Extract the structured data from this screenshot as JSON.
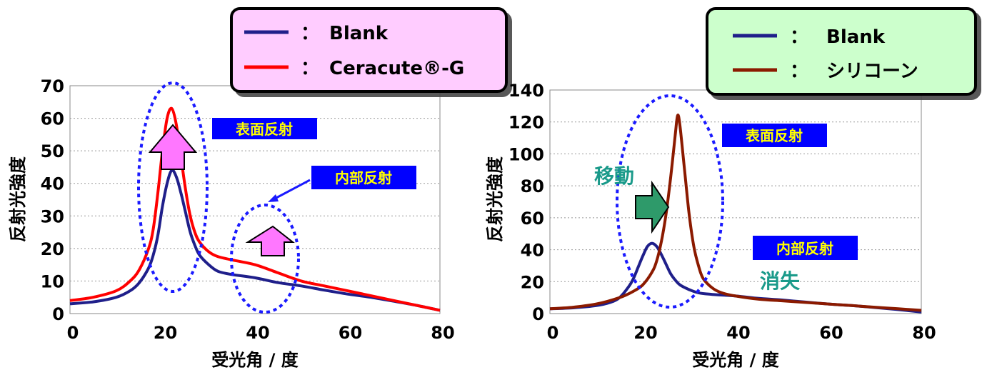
{
  "chart_data": [
    {
      "type": "line",
      "xlabel": "受光角 / 度",
      "ylabel": "反射光強度",
      "xlim": [
        0,
        80
      ],
      "ylim": [
        0,
        70
      ],
      "xticks": [
        "0",
        "20",
        "40",
        "60",
        "80"
      ],
      "yticks": [
        "0",
        "10",
        "20",
        "30",
        "40",
        "50",
        "60",
        "70"
      ],
      "grid": "horizontal dotted",
      "legend": {
        "position": "top",
        "background": "#ffccff",
        "entries": [
          {
            "marker": "：",
            "label": "Blank"
          },
          {
            "marker": "：",
            "label": "Ceracute®-G"
          }
        ]
      },
      "series": [
        {
          "name": "Blank",
          "color": "#1f1f8a",
          "x": [
            0,
            5,
            10,
            13,
            15,
            17,
            18,
            19,
            20,
            21,
            22,
            23,
            24,
            25,
            26,
            27,
            28,
            30,
            32,
            35,
            40,
            45,
            50,
            55,
            60,
            65,
            70,
            75,
            80
          ],
          "y": [
            3,
            3.6,
            5,
            7,
            9.5,
            14,
            18,
            24,
            33,
            40,
            44,
            42,
            37,
            31,
            25,
            21,
            18,
            15,
            13,
            12,
            11,
            9.5,
            8.5,
            7.2,
            6,
            5,
            3.8,
            2.5,
            1
          ]
        },
        {
          "name": "Ceracute®-G",
          "color": "#ff0000",
          "x": [
            0,
            5,
            10,
            13,
            15,
            17,
            18,
            19,
            20,
            21,
            22,
            23,
            24,
            25,
            26,
            27,
            28,
            30,
            32,
            35,
            40,
            45,
            50,
            55,
            60,
            65,
            70,
            75,
            80
          ],
          "y": [
            4,
            5,
            7,
            10,
            13.5,
            20,
            26,
            37,
            50,
            60,
            63,
            58,
            48,
            38,
            30,
            25,
            22,
            19,
            17.5,
            16.5,
            15,
            12.5,
            10,
            8.5,
            7,
            5.5,
            4,
            2.5,
            1
          ]
        }
      ],
      "annotations": [
        {
          "text": "表面反射",
          "color": "#ffff00",
          "background": "#0000ff"
        },
        {
          "text": "内部反射",
          "color": "#ffff00",
          "background": "#0000ff"
        }
      ]
    },
    {
      "type": "line",
      "xlabel": "受光角 / 度",
      "ylabel": "反射光強度",
      "xlim": [
        0,
        80
      ],
      "ylim": [
        0,
        140
      ],
      "xticks": [
        "0",
        "20",
        "40",
        "60",
        "80"
      ],
      "yticks": [
        "0",
        "20",
        "40",
        "60",
        "80",
        "100",
        "120",
        "140"
      ],
      "grid": "horizontal dotted",
      "legend": {
        "position": "top-right",
        "background": "#ccffcc",
        "entries": [
          {
            "marker": "：",
            "label": "Blank"
          },
          {
            "marker": "：",
            "label": "シリコーン"
          }
        ]
      },
      "series": [
        {
          "name": "Blank",
          "color": "#1f1f8a",
          "x": [
            0,
            5,
            10,
            13,
            15,
            17,
            18,
            19,
            20,
            21,
            22,
            23,
            24,
            25,
            26,
            27,
            28,
            30,
            32,
            35,
            40,
            45,
            50,
            55,
            60,
            65,
            70,
            75,
            80
          ],
          "y": [
            3,
            3.6,
            5,
            7,
            10,
            17,
            22,
            29,
            36,
            42,
            44,
            42,
            37,
            31,
            25,
            21,
            18,
            15,
            13,
            12,
            11,
            9.5,
            8.5,
            7.2,
            6,
            5,
            3.8,
            2.5,
            1
          ]
        },
        {
          "name": "シリコーン",
          "color": "#8b1a00",
          "x": [
            0,
            5,
            10,
            15,
            18,
            20,
            22,
            23,
            24,
            25,
            26,
            27,
            27.5,
            28,
            29,
            30,
            31,
            32,
            33,
            35,
            37,
            40,
            45,
            50,
            55,
            60,
            65,
            70,
            75,
            80
          ],
          "y": [
            3,
            4,
            6,
            10,
            14,
            18,
            26,
            33,
            45,
            62,
            85,
            112,
            124,
            118,
            90,
            62,
            42,
            30,
            22,
            16,
            13,
            11,
            9,
            8,
            7,
            6,
            5,
            4,
            3,
            2
          ]
        }
      ],
      "annotations": [
        {
          "text": "表面反射",
          "color": "#ffff00",
          "background": "#0000ff"
        },
        {
          "text": "内部反射",
          "color": "#ffff00",
          "background": "#0000ff"
        },
        {
          "text": "移動",
          "color": "#1a9a8a"
        },
        {
          "text": "消失",
          "color": "#1a9a8a"
        }
      ]
    }
  ]
}
